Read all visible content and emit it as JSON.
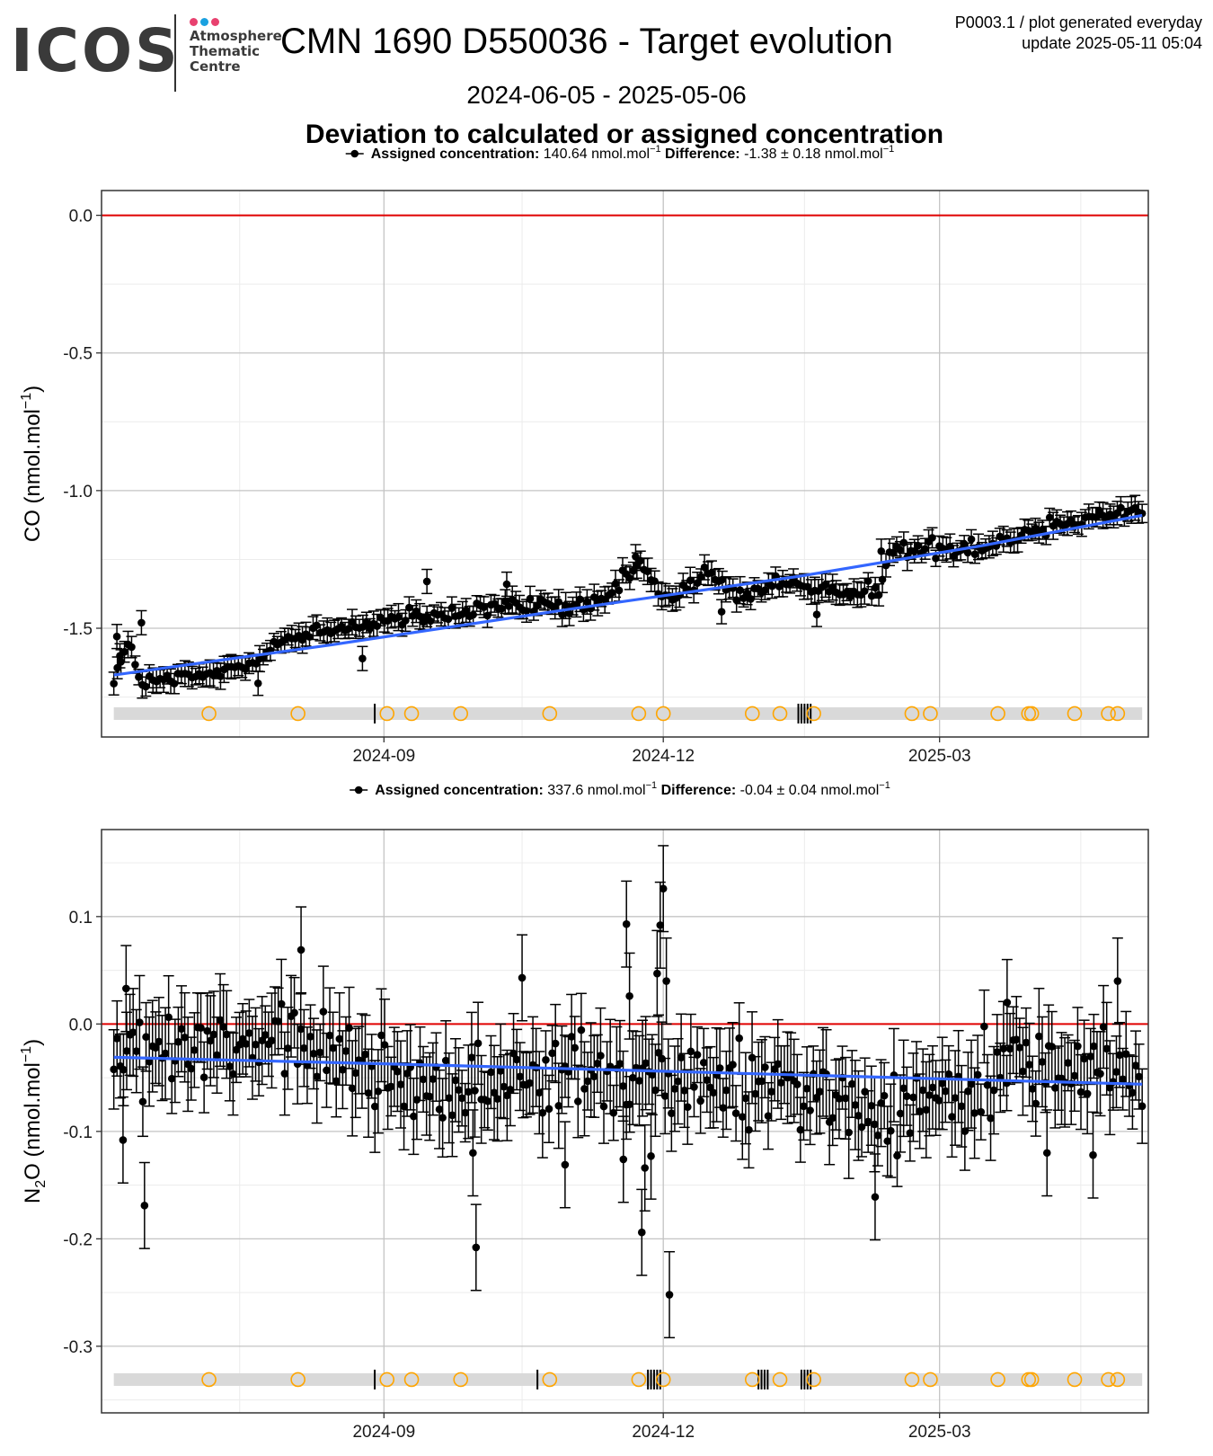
{
  "logo": {
    "word": "ICOS",
    "lines": [
      "Atmosphere",
      "Thematic",
      "Centre"
    ],
    "dot_colors": [
      "#e8416f",
      "#1aa1e0",
      "#e8416f"
    ]
  },
  "header": {
    "title": "CMN 1690 D550036 - Target evolution",
    "info_line1": "P0003.1 / plot generated everyday",
    "info_line2": "update  2025-05-11 05:04",
    "date_range": "2024-06-05 - 2025-05-06",
    "section_title": "Deviation to calculated or assigned concentration"
  },
  "colors": {
    "points": "#000000",
    "trend": "#3366ff",
    "zero_line": "#e00000",
    "flag_circle": "#ffa500",
    "flag_band": "#d9d9d9",
    "grid_major": "#c4c4c4",
    "grid_minor": "#ececec"
  },
  "chart_data": [
    {
      "type": "scatter",
      "gas": "CO",
      "legend_marker": "●",
      "legend_label_bold": "Assigned concentration:",
      "legend_value": "140.64 nmol.mol",
      "legend_value_sup": "−1",
      "legend_diff_bold": "Difference:",
      "legend_diff_value": "-1.38 ± 0.18 nmol.mol",
      "legend_diff_sup": "−1",
      "ylabel": "CO (nmol.mol",
      "ylabel_sup": "−1",
      "ylabel_end": ")",
      "x_start": "2024-06-05",
      "x_end": "2025-05-06",
      "xlim": [
        "2024-06-01",
        "2025-05-08"
      ],
      "ylim": [
        -1.895,
        0.09
      ],
      "yticks": [
        0.0,
        -0.5,
        -1.0,
        -1.5
      ],
      "ytick_labels": [
        "0.0",
        "-0.5",
        "-1.0",
        "-1.5"
      ],
      "xticks": [
        "2024-09-01",
        "2024-12-01",
        "2025-03-01"
      ],
      "xtick_labels": [
        "2024-09",
        "2024-12",
        "2025-03"
      ],
      "x_minor": [
        "2024-07-16",
        "2024-10-16",
        "2025-01-16",
        "2025-04-16"
      ],
      "zero_line": 0.0,
      "trend": [
        [
          "2024-06-05",
          -1.67
        ],
        [
          "2024-08-15",
          -1.56
        ],
        [
          "2024-11-01",
          -1.43
        ],
        [
          "2025-01-15",
          -1.31
        ],
        [
          "2025-03-15",
          -1.2
        ],
        [
          "2025-05-06",
          -1.09
        ]
      ],
      "anchors": [
        [
          "2024-06-05",
          -1.67
        ],
        [
          "2024-06-10",
          -1.56
        ],
        [
          "2024-06-14",
          -1.7
        ],
        [
          "2024-07-01",
          -1.68
        ],
        [
          "2024-07-20",
          -1.63
        ],
        [
          "2024-07-27",
          -1.55
        ],
        [
          "2024-08-10",
          -1.52
        ],
        [
          "2024-09-01",
          -1.47
        ],
        [
          "2024-09-20",
          -1.46
        ],
        [
          "2024-10-10",
          -1.42
        ],
        [
          "2024-11-10",
          -1.42
        ],
        [
          "2024-11-24",
          -1.26
        ],
        [
          "2024-12-01",
          -1.4
        ],
        [
          "2024-12-15",
          -1.3
        ],
        [
          "2024-12-25",
          -1.38
        ],
        [
          "2025-01-10",
          -1.33
        ],
        [
          "2025-01-20",
          -1.37
        ],
        [
          "2025-02-10",
          -1.35
        ],
        [
          "2025-02-13",
          -1.22
        ],
        [
          "2025-03-15",
          -1.2
        ],
        [
          "2025-04-15",
          -1.1
        ],
        [
          "2025-05-06",
          -1.07
        ]
      ],
      "n_points": 290,
      "noise": 0.028,
      "err_bar": 0.035,
      "outliers": [
        [
          "2024-06-06",
          -1.53
        ],
        [
          "2024-06-07",
          -1.6
        ],
        [
          "2024-06-14",
          -1.48
        ],
        [
          "2024-07-22",
          -1.7
        ],
        [
          "2024-09-15",
          -1.33
        ],
        [
          "2024-10-11",
          -1.34
        ],
        [
          "2024-11-22",
          -1.24
        ],
        [
          "2025-01-20",
          -1.45
        ],
        [
          "2025-02-10",
          -1.22
        ],
        [
          "2024-08-25",
          -1.61
        ],
        [
          "2024-12-20",
          -1.44
        ]
      ],
      "flag_band_y": -1.81,
      "flag_circles": [
        "2024-07-06",
        "2024-08-04",
        "2024-09-02",
        "2024-09-10",
        "2024-09-26",
        "2024-10-25",
        "2024-11-23",
        "2024-12-01",
        "2024-12-30",
        "2025-01-08",
        "2025-01-19",
        "2025-02-20",
        "2025-02-26",
        "2025-03-20",
        "2025-03-30",
        "2025-03-31",
        "2025-04-14",
        "2025-04-25",
        "2025-04-28"
      ],
      "flag_ticks": [
        "2024-08-29",
        "2025-01-14",
        "2025-01-15",
        "2025-01-16",
        "2025-01-17",
        "2025-01-18"
      ]
    },
    {
      "type": "scatter",
      "gas": "N2O",
      "legend_marker": "●",
      "legend_label_bold": "Assigned concentration:",
      "legend_value": "337.6 nmol.mol",
      "legend_value_sup": "−1",
      "legend_diff_bold": "Difference:",
      "legend_diff_value": "-0.04 ± 0.04 nmol.mol",
      "legend_diff_sup": "−1",
      "ylabel": "N",
      "ylabel_sub": "2",
      "ylabel_rest": "O (nmol.mol",
      "ylabel_sup": "−1",
      "ylabel_end": ")",
      "x_start": "2024-06-05",
      "x_end": "2025-05-06",
      "xlim": [
        "2024-06-01",
        "2025-05-08"
      ],
      "ylim": [
        -0.362,
        0.181
      ],
      "yticks": [
        0.1,
        0.0,
        -0.1,
        -0.2,
        -0.3
      ],
      "ytick_labels": [
        "0.1",
        "0.0",
        "-0.1",
        "-0.2",
        "-0.3"
      ],
      "xticks": [
        "2024-09-01",
        "2024-12-01",
        "2025-03-01"
      ],
      "xtick_labels": [
        "2024-09",
        "2024-12",
        "2025-03"
      ],
      "x_minor": [
        "2024-07-16",
        "2024-10-16",
        "2025-01-16",
        "2025-04-16"
      ],
      "zero_line": 0.0,
      "trend": [
        [
          "2024-06-05",
          -0.031
        ],
        [
          "2024-09-01",
          -0.037
        ],
        [
          "2024-12-01",
          -0.044
        ],
        [
          "2025-03-01",
          -0.051
        ],
        [
          "2025-05-06",
          -0.056
        ]
      ],
      "anchors": [
        [
          "2024-06-05",
          -0.03
        ],
        [
          "2024-08-01",
          -0.02
        ],
        [
          "2024-09-20",
          -0.06
        ],
        [
          "2024-11-01",
          -0.05
        ],
        [
          "2025-01-20",
          -0.06
        ],
        [
          "2025-02-15",
          -0.09
        ],
        [
          "2025-03-20",
          -0.04
        ],
        [
          "2025-05-06",
          -0.04
        ]
      ],
      "n_points": 320,
      "noise": 0.032,
      "err_bar": 0.032,
      "outliers": [
        [
          "2024-06-08",
          -0.108
        ],
        [
          "2024-06-15",
          -0.169
        ],
        [
          "2024-08-05",
          0.069
        ],
        [
          "2024-10-01",
          -0.208
        ],
        [
          "2024-10-16",
          0.043
        ],
        [
          "2024-11-19",
          0.093
        ],
        [
          "2024-11-24",
          -0.194
        ],
        [
          "2024-11-25",
          -0.134
        ],
        [
          "2024-11-27",
          -0.123
        ],
        [
          "2024-11-29",
          0.047
        ],
        [
          "2024-11-30",
          0.092
        ],
        [
          "2024-12-01",
          0.126
        ],
        [
          "2024-12-02",
          0.04
        ],
        [
          "2024-12-03",
          -0.252
        ],
        [
          "2024-11-20",
          0.026
        ],
        [
          "2024-11-18",
          -0.126
        ],
        [
          "2024-10-30",
          -0.131
        ],
        [
          "2024-09-30",
          -0.12
        ],
        [
          "2024-06-09",
          0.033
        ],
        [
          "2025-02-08",
          -0.161
        ],
        [
          "2025-03-23",
          0.02
        ],
        [
          "2025-04-28",
          0.04
        ],
        [
          "2025-04-20",
          -0.122
        ],
        [
          "2025-04-05",
          -0.12
        ]
      ],
      "flag_band_y": -0.331,
      "flag_circles": [
        "2024-07-06",
        "2024-08-04",
        "2024-09-02",
        "2024-09-10",
        "2024-09-26",
        "2024-10-25",
        "2024-11-23",
        "2024-12-01",
        "2024-12-30",
        "2025-01-08",
        "2025-01-19",
        "2025-02-20",
        "2025-02-26",
        "2025-03-20",
        "2025-03-30",
        "2025-03-31",
        "2025-04-14",
        "2025-04-25",
        "2025-04-28"
      ],
      "flag_ticks": [
        "2024-08-29",
        "2024-10-21",
        "2024-11-26",
        "2024-11-27",
        "2024-11-28",
        "2024-11-29",
        "2024-11-30",
        "2025-01-01",
        "2025-01-02",
        "2025-01-03",
        "2025-01-04",
        "2025-01-15",
        "2025-01-16",
        "2025-01-17",
        "2025-01-18"
      ]
    }
  ]
}
